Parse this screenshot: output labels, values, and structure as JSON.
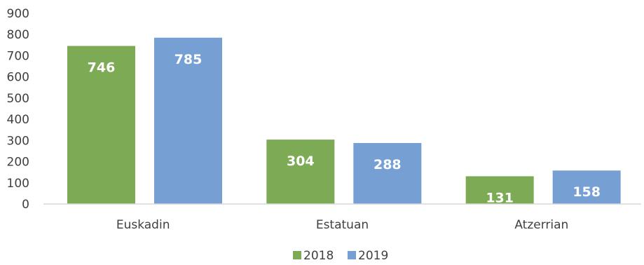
{
  "chart_data": {
    "type": "bar",
    "categories": [
      "Euskadin",
      "Estatuan",
      "Atzerrian"
    ],
    "series": [
      {
        "name": "2018",
        "values": [
          746,
          304,
          131
        ],
        "color": "#7dab55"
      },
      {
        "name": "2019",
        "values": [
          785,
          288,
          158
        ],
        "color": "#769fd3"
      }
    ],
    "yticks": [
      0,
      100,
      200,
      300,
      400,
      500,
      600,
      700,
      800,
      900
    ],
    "ylim": [
      0,
      900
    ],
    "grid": false,
    "legend_position": "bottom",
    "data_labels": true,
    "axis_color": "#d9d9d9"
  }
}
